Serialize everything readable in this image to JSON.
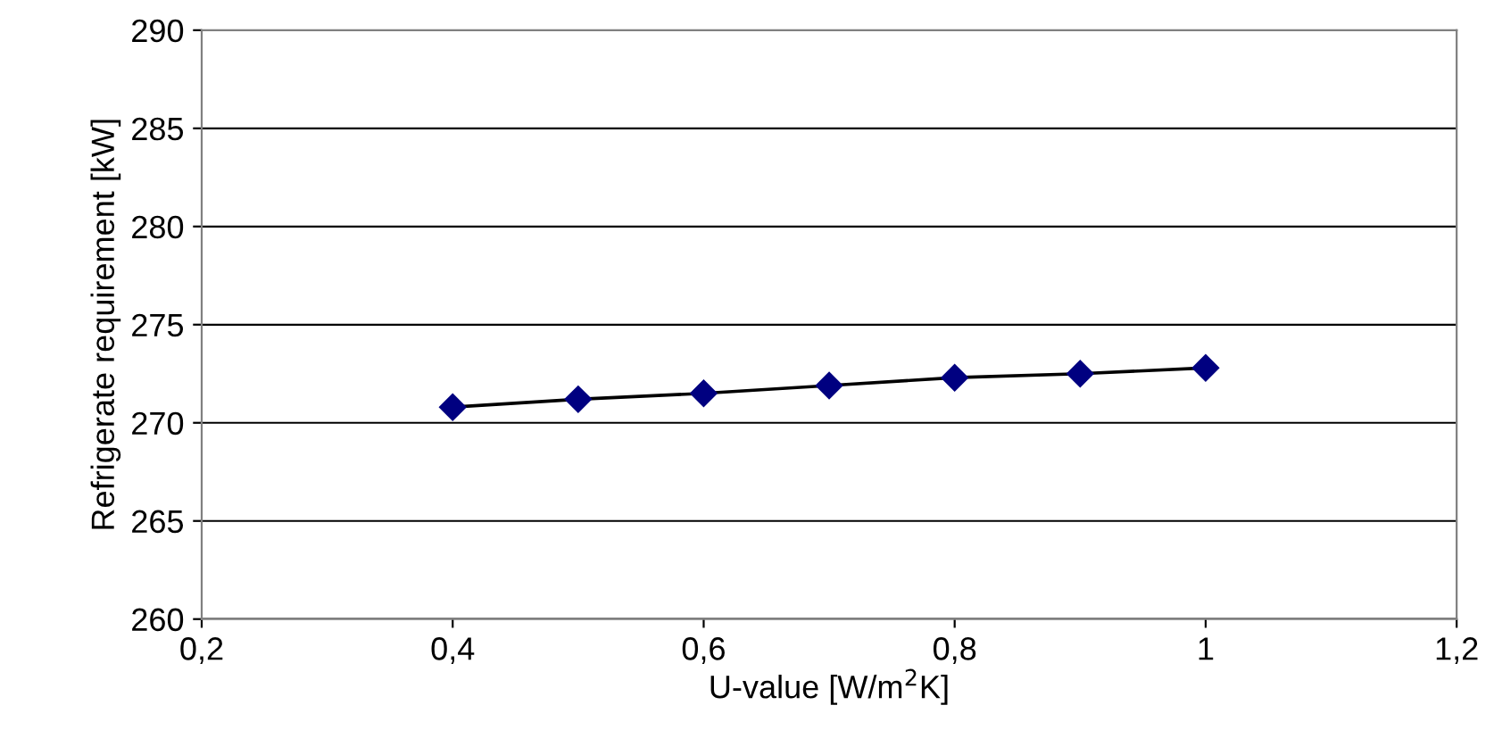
{
  "chart_data": {
    "type": "line",
    "xlabel": "U-value [W/m$^{2}$K]",
    "ylabel": "Refrigerate requirement [kW]",
    "x": [
      0.4,
      0.5,
      0.6,
      0.7,
      0.8,
      0.9,
      1.0
    ],
    "series": [
      {
        "color": "#000080",
        "values": [
          270.8,
          271.2,
          271.5,
          271.9,
          272.3,
          272.5,
          272.8
        ]
      }
    ],
    "xlim": [
      0.2,
      1.2
    ],
    "xticks": [
      {
        "value": 0.2,
        "label": "0,2"
      },
      {
        "value": 0.4,
        "label": "0,4"
      },
      {
        "value": 0.6,
        "label": "0,6"
      },
      {
        "value": 0.8,
        "label": "0,8"
      },
      1,
      {
        "value": 1.2,
        "label": "1,2"
      }
    ],
    "ylim": [
      260,
      290
    ],
    "yticks": [
      260,
      265,
      270,
      275,
      280,
      285,
      290
    ],
    "grid": "y",
    "marker": "diamond",
    "line_style": "solid"
  }
}
